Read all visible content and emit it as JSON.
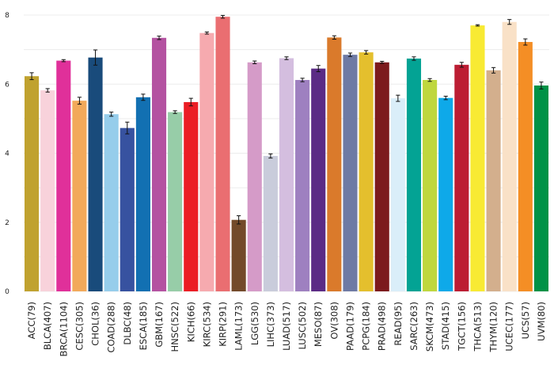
{
  "chart_data": {
    "type": "bar",
    "title": "",
    "xlabel": "",
    "ylabel": "",
    "ylim": [
      0,
      8
    ],
    "yticks": [
      0,
      2,
      4,
      6,
      8
    ],
    "grid": true,
    "legend": "none",
    "categories": [
      "ACC(79)",
      "BLCA(407)",
      "BRCA(1104)",
      "CESC(305)",
      "CHOL(36)",
      "COAD(288)",
      "DLBC(48)",
      "ESCA(185)",
      "GBM(167)",
      "HNSC(522)",
      "KICH(66)",
      "KIRC(534)",
      "KIRP(291)",
      "LAML(173)",
      "LGG(530)",
      "LIHC(373)",
      "LUAD(517)",
      "LUSC(502)",
      "MESO(87)",
      "OV(308)",
      "PAAD(179)",
      "PCPG(184)",
      "PRAD(498)",
      "READ(95)",
      "SARC(263)",
      "SKCM(473)",
      "STAD(415)",
      "TGCT(156)",
      "THCA(513)",
      "THYM(120)",
      "UCEC(177)",
      "UCS(57)",
      "UVM(80)"
    ],
    "values": [
      6.23,
      5.82,
      6.68,
      5.52,
      6.77,
      5.13,
      4.73,
      5.62,
      7.34,
      5.19,
      5.48,
      7.48,
      7.95,
      2.07,
      6.63,
      3.92,
      6.75,
      6.12,
      6.45,
      7.35,
      6.85,
      6.92,
      6.63,
      5.59,
      6.74,
      6.12,
      5.6,
      6.56,
      7.7,
      6.4,
      7.8,
      7.22,
      5.96
    ],
    "errors": [
      0.1,
      0.05,
      0.03,
      0.1,
      0.22,
      0.06,
      0.17,
      0.09,
      0.05,
      0.04,
      0.11,
      0.03,
      0.04,
      0.12,
      0.04,
      0.06,
      0.04,
      0.05,
      0.09,
      0.05,
      0.05,
      0.05,
      0.03,
      0.09,
      0.05,
      0.04,
      0.05,
      0.07,
      0.02,
      0.08,
      0.07,
      0.09,
      0.1
    ],
    "colors": [
      "#C0A22F",
      "#F8D2DB",
      "#E0309A",
      "#F2A95A",
      "#194B7B",
      "#96CDEB",
      "#3752A0",
      "#1270B2",
      "#B452A1",
      "#97CDA8",
      "#EB1D24",
      "#F6AAAF",
      "#EA6E71",
      "#734A2A",
      "#D59BC8",
      "#C9CCDB",
      "#D4BEDF",
      "#9E80C0",
      "#5B2B85",
      "#DA7A2B",
      "#6E7AA4",
      "#E4BF2D",
      "#7C1A1D",
      "#DAEEF9",
      "#03A394",
      "#BFD73E",
      "#0EA9E9",
      "#BC1D33",
      "#F8EA33",
      "#D3AF8D",
      "#F9E1C7",
      "#F48E25",
      "#009247"
    ]
  }
}
